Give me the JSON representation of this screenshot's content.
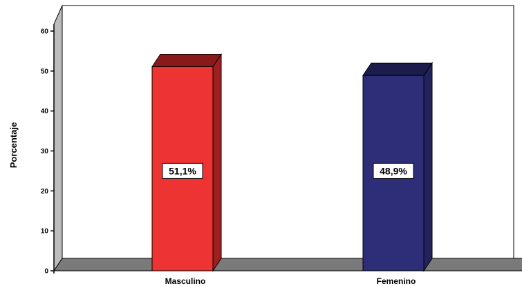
{
  "chart_data": {
    "type": "bar",
    "categories": [
      "Masculino",
      "Femenino"
    ],
    "values": [
      51.1,
      48.9
    ],
    "data_labels": [
      "51,1%",
      "48,9%"
    ],
    "ylabel": "Porcentaje",
    "ylim": [
      0,
      60
    ],
    "yticks": [
      "0",
      "10",
      "20",
      "30",
      "40",
      "50",
      "60"
    ],
    "grid": false,
    "bar_style": "3d",
    "colors": {
      "front": [
        "#ee3333",
        "#2e2e78"
      ],
      "top": [
        "#8a1a1a",
        "#1b1b4c"
      ],
      "side": [
        "#9e1f1f",
        "#22225c"
      ],
      "floor": "#7a7a7a",
      "wall": "#ffffff"
    }
  }
}
